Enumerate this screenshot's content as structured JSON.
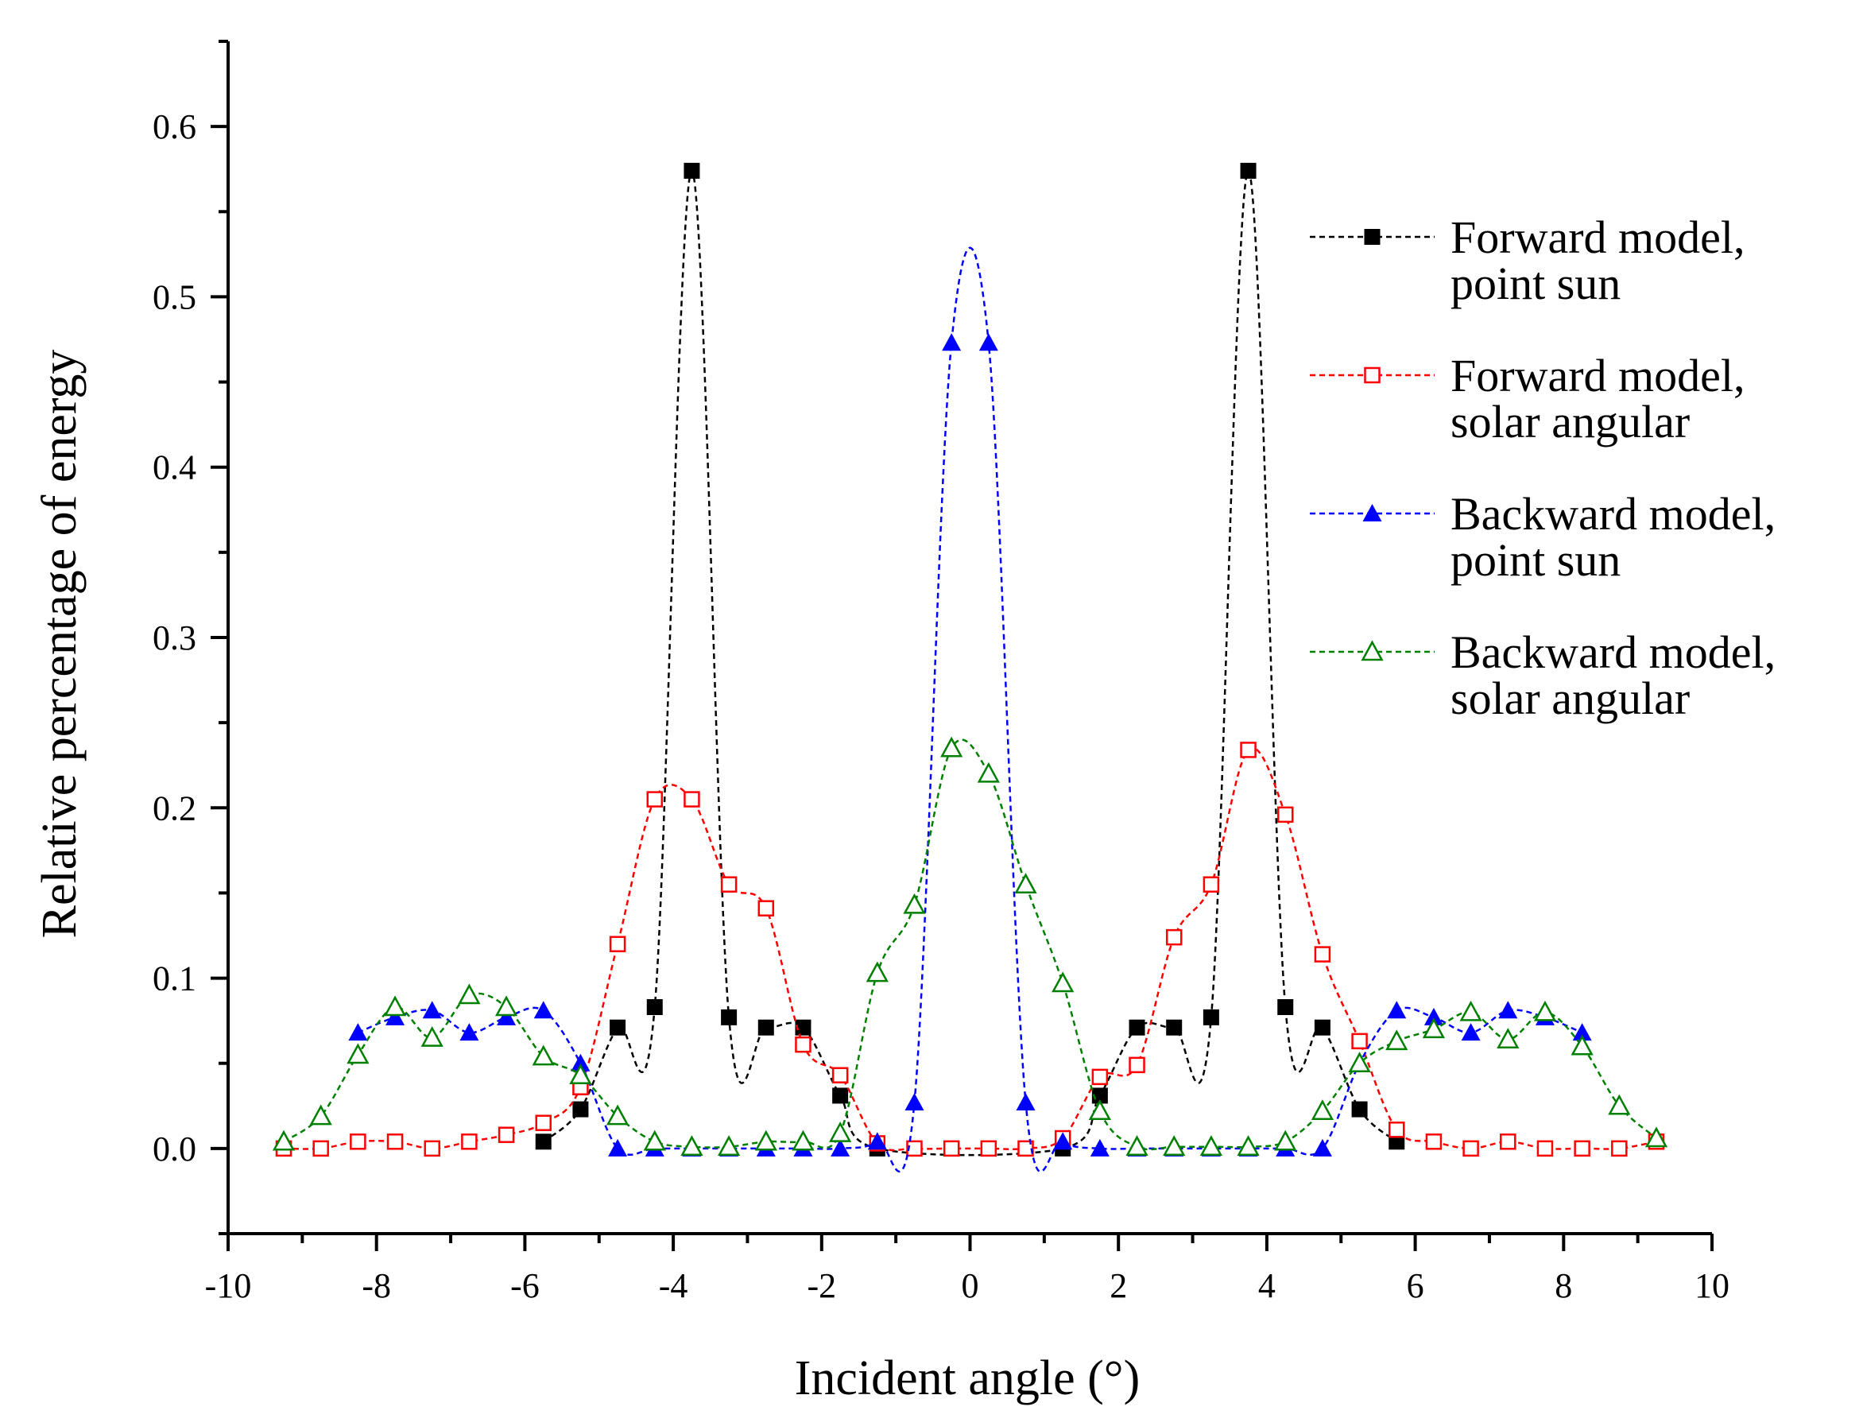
{
  "chart_data": {
    "type": "line",
    "title": "",
    "xlabel": "Incident angle (°)",
    "ylabel": "Relative percentage of energy",
    "xlim": [
      -10,
      10
    ],
    "ylim": [
      -0.05,
      0.65
    ],
    "xticks": [
      -10,
      -8,
      -6,
      -4,
      -2,
      0,
      2,
      4,
      6,
      8,
      10
    ],
    "xtick_labels": [
      "-10",
      "-8",
      "-6",
      "-4",
      "-2",
      "0",
      "2",
      "4",
      "6",
      "8",
      "10"
    ],
    "yticks": [
      0.0,
      0.1,
      0.2,
      0.3,
      0.4,
      0.5,
      0.6
    ],
    "ytick_labels": [
      "0.0",
      "0.1",
      "0.2",
      "0.3",
      "0.4",
      "0.5",
      "0.6"
    ],
    "grid": false,
    "legend_position": "right",
    "series": [
      {
        "name": "Forward model, point sun",
        "legend_lines": [
          "Forward model,",
          "point sun"
        ],
        "color": "#000000",
        "marker": "square-filled",
        "x": [
          -5.75,
          -5.25,
          -4.75,
          -4.25,
          -3.75,
          -3.25,
          -2.75,
          -2.25,
          -1.75,
          -1.25,
          1.25,
          1.75,
          2.25,
          2.75,
          3.25,
          3.75,
          4.25,
          4.75,
          5.25,
          5.75
        ],
        "y": [
          0.004,
          0.023,
          0.071,
          0.083,
          0.574,
          0.077,
          0.071,
          0.071,
          0.031,
          0.0,
          0.0,
          0.031,
          0.071,
          0.071,
          0.077,
          0.574,
          0.083,
          0.071,
          0.023,
          0.004
        ]
      },
      {
        "name": "Forward model, solar angular",
        "legend_lines": [
          "Forward model,",
          "solar angular"
        ],
        "color": "#ff0000",
        "marker": "square-open",
        "x": [
          -9.25,
          -8.75,
          -8.25,
          -7.75,
          -7.25,
          -6.75,
          -6.25,
          -5.75,
          -5.25,
          -4.75,
          -4.25,
          -3.75,
          -3.25,
          -2.75,
          -2.25,
          -1.75,
          -1.25,
          -0.75,
          -0.25,
          0.25,
          0.75,
          1.25,
          1.75,
          2.25,
          2.75,
          3.25,
          3.75,
          4.25,
          4.75,
          5.25,
          5.75,
          6.25,
          6.75,
          7.25,
          7.75,
          8.25,
          8.75,
          9.25
        ],
        "y": [
          0.0,
          0.0,
          0.004,
          0.004,
          0.0,
          0.004,
          0.008,
          0.015,
          0.036,
          0.12,
          0.205,
          0.205,
          0.155,
          0.141,
          0.061,
          0.043,
          0.003,
          0.0,
          0.0,
          0.0,
          0.0,
          0.006,
          0.042,
          0.049,
          0.124,
          0.155,
          0.234,
          0.196,
          0.114,
          0.063,
          0.011,
          0.004,
          0.0,
          0.004,
          0.0,
          0.0,
          0.0,
          0.004
        ]
      },
      {
        "name": "Backward model, point sun",
        "legend_lines": [
          "Backward model,",
          "point sun"
        ],
        "color": "#0000ff",
        "marker": "triangle-filled",
        "x": [
          -8.25,
          -7.75,
          -7.25,
          -6.75,
          -6.25,
          -5.75,
          -5.25,
          -4.75,
          -4.25,
          -3.75,
          -3.25,
          -2.75,
          -2.25,
          -1.75,
          -1.25,
          -0.75,
          -0.25,
          0.25,
          0.75,
          1.25,
          1.75,
          2.25,
          2.75,
          3.25,
          3.75,
          4.25,
          4.75,
          5.25,
          5.75,
          6.25,
          6.75,
          7.25,
          7.75,
          8.25
        ],
        "y": [
          0.068,
          0.077,
          0.081,
          0.068,
          0.077,
          0.081,
          0.05,
          0.0,
          0.0,
          0.0,
          0.0,
          0.0,
          0.0,
          0.0,
          0.004,
          0.027,
          0.473,
          0.473,
          0.027,
          0.004,
          0.0,
          0.0,
          0.0,
          0.0,
          0.0,
          0.0,
          0.0,
          0.05,
          0.081,
          0.077,
          0.068,
          0.081,
          0.077,
          0.068
        ]
      },
      {
        "name": "Backward model, solar angular",
        "legend_lines": [
          "Backward model,",
          "solar angular"
        ],
        "color": "#008000",
        "marker": "triangle-open",
        "x": [
          -9.25,
          -8.75,
          -8.25,
          -7.75,
          -7.25,
          -6.75,
          -6.25,
          -5.75,
          -5.25,
          -4.75,
          -4.25,
          -3.75,
          -3.25,
          -2.75,
          -2.25,
          -1.75,
          -1.25,
          -0.75,
          -0.25,
          0.25,
          0.75,
          1.25,
          1.75,
          2.25,
          2.75,
          3.25,
          3.75,
          4.25,
          4.75,
          5.25,
          5.75,
          6.25,
          6.75,
          7.25,
          7.75,
          8.25,
          8.75,
          9.25
        ],
        "y": [
          0.004,
          0.019,
          0.055,
          0.083,
          0.065,
          0.09,
          0.083,
          0.054,
          0.043,
          0.019,
          0.004,
          0.001,
          0.001,
          0.004,
          0.004,
          0.009,
          0.103,
          0.143,
          0.235,
          0.22,
          0.155,
          0.097,
          0.022,
          0.001,
          0.001,
          0.001,
          0.001,
          0.004,
          0.022,
          0.05,
          0.063,
          0.07,
          0.08,
          0.064,
          0.08,
          0.06,
          0.025,
          0.006
        ]
      }
    ]
  }
}
